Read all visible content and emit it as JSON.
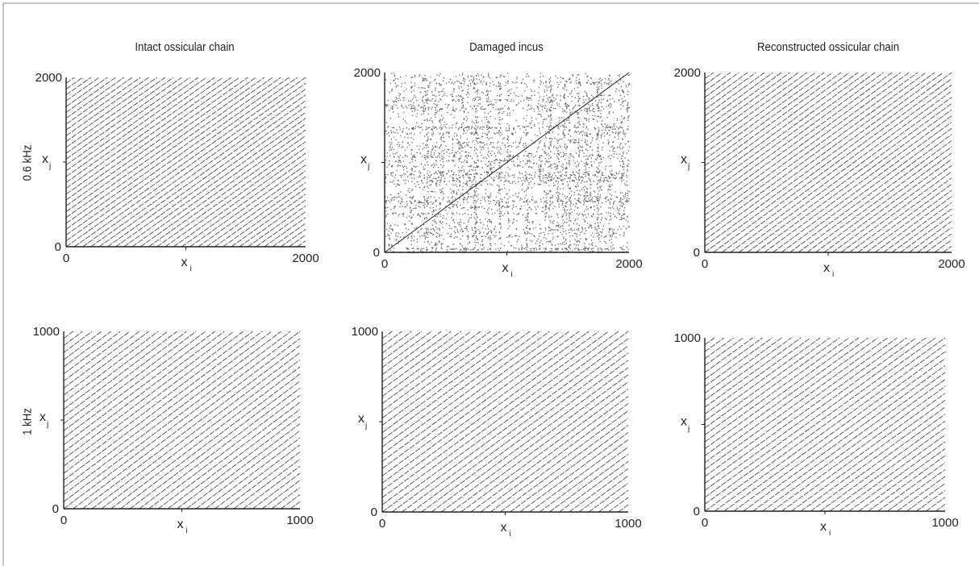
{
  "chart_data": [
    {
      "type": "scatter",
      "subtype": "recurrence-plot",
      "title": "Intact ossicular chain",
      "row_label": "0.6 kHz",
      "xlabel": "x",
      "xlabel_sub": "i",
      "ylabel": "x",
      "ylabel_sub": "j",
      "xlim": [
        0,
        2000
      ],
      "ylim": [
        0,
        2000
      ],
      "xticks": [
        "0",
        "2000"
      ],
      "yticks": [
        "0",
        "2000"
      ],
      "pattern": "diagonal-lines",
      "line_count": 29,
      "noise": 0.0,
      "grid": false
    },
    {
      "type": "scatter",
      "subtype": "recurrence-plot",
      "title": "Damaged incus",
      "row_label": "0.6 kHz",
      "xlabel": "x",
      "xlabel_sub": "i",
      "ylabel": "x",
      "ylabel_sub": "j",
      "xlim": [
        0,
        2000
      ],
      "ylim": [
        0,
        2000
      ],
      "xticks": [
        "0",
        "2000"
      ],
      "yticks": [
        "0",
        "2000"
      ],
      "pattern": "scattered-points-with-main-diagonal",
      "line_count": 1,
      "noise": 0.5,
      "grid": false
    },
    {
      "type": "scatter",
      "subtype": "recurrence-plot",
      "title": "Reconstructed ossicular chain",
      "row_label": "0.6 kHz",
      "xlabel": "x",
      "xlabel_sub": "i",
      "ylabel": "x",
      "ylabel_sub": "j",
      "xlim": [
        0,
        2000
      ],
      "ylim": [
        0,
        2000
      ],
      "xticks": [
        "0",
        "2000"
      ],
      "yticks": [
        "0",
        "2000"
      ],
      "pattern": "diagonal-lines",
      "line_count": 29,
      "noise": 0.0,
      "grid": false
    },
    {
      "type": "scatter",
      "subtype": "recurrence-plot",
      "title": "Intact ossicular chain",
      "row_label": "1 kHz",
      "xlabel": "x",
      "xlabel_sub": "i",
      "ylabel": "x",
      "ylabel_sub": "j",
      "xlim": [
        0,
        1000
      ],
      "ylim": [
        0,
        1000
      ],
      "xticks": [
        "0",
        "1000"
      ],
      "yticks": [
        "0",
        "1000"
      ],
      "pattern": "diagonal-lines",
      "line_count": 25,
      "noise": 0.0,
      "grid": false
    },
    {
      "type": "scatter",
      "subtype": "recurrence-plot",
      "title": "Damaged incus",
      "row_label": "1 kHz",
      "xlabel": "x",
      "xlabel_sub": "i",
      "ylabel": "x",
      "ylabel_sub": "j",
      "xlim": [
        0,
        1000
      ],
      "ylim": [
        0,
        1000
      ],
      "xticks": [
        "0",
        "1000"
      ],
      "yticks": [
        "0",
        "1000"
      ],
      "pattern": "diagonal-lines",
      "line_count": 25,
      "noise": 0.0,
      "grid": false
    },
    {
      "type": "scatter",
      "subtype": "recurrence-plot",
      "title": "Reconstructed ossicular chain",
      "row_label": "1 kHz",
      "xlabel": "x",
      "xlabel_sub": "i",
      "ylabel": "x",
      "ylabel_sub": "j",
      "xlim": [
        0,
        1000
      ],
      "ylim": [
        0,
        1000
      ],
      "xticks": [
        "0",
        "1000"
      ],
      "yticks": [
        "0",
        "1000"
      ],
      "pattern": "diagonal-lines",
      "line_count": 25,
      "noise": 0.0,
      "grid": false
    }
  ],
  "columns": [
    "Intact ossicular chain",
    "Damaged incus",
    "Reconstructed ossicular chain"
  ],
  "rows": [
    "0.6 kHz",
    "1 kHz"
  ],
  "colors": {
    "ink": "#231f20",
    "points": "#3a3a3a",
    "frame": "#8a8a8a"
  }
}
